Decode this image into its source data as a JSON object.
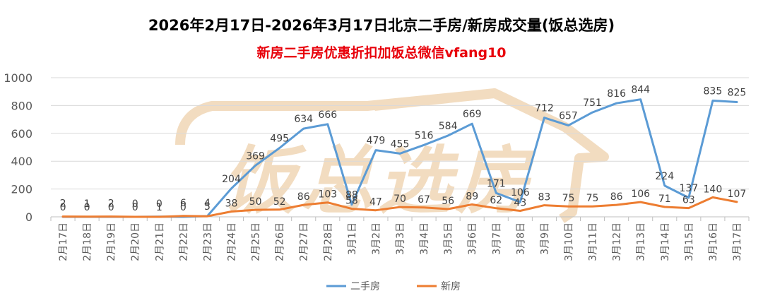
{
  "title": "2026年2月17日-2026年3月17日北京二手房/新房成交量(饭总选房)",
  "subtitle": "新房二手房优惠折扣加饭总微信vfang10",
  "watermark": {
    "text": "饭总选房",
    "color": "#f2dcc0"
  },
  "chart_data": {
    "type": "line",
    "categories": [
      "2月17日",
      "2月18日",
      "2月19日",
      "2月20日",
      "2月21日",
      "2月22日",
      "2月23日",
      "2月24日",
      "2月25日",
      "2月26日",
      "2月27日",
      "2月28日",
      "3月1日",
      "3月2日",
      "3月3日",
      "3月4日",
      "3月5日",
      "3月6日",
      "3月7日",
      "3月8日",
      "3月9日",
      "3月10日",
      "3月11日",
      "3月12日",
      "3月13日",
      "3月14日",
      "3月15日",
      "3月16日",
      "3月17日"
    ],
    "series": [
      {
        "name": "二手房",
        "color": "#5b9bd5",
        "values": [
          0,
          0,
          0,
          0,
          1,
          0,
          5,
          204,
          369,
          495,
          634,
          666,
          88,
          479,
          455,
          516,
          584,
          669,
          171,
          106,
          712,
          657,
          751,
          816,
          844,
          224,
          137,
          835,
          825
        ]
      },
      {
        "name": "新房",
        "color": "#ed7d31",
        "values": [
          2,
          1,
          2,
          0,
          0,
          6,
          4,
          38,
          50,
          52,
          86,
          103,
          58,
          47,
          70,
          67,
          56,
          89,
          62,
          43,
          83,
          75,
          75,
          86,
          106,
          71,
          63,
          140,
          107
        ]
      }
    ],
    "yticks": [
      0,
      200,
      400,
      600,
      800,
      1000
    ],
    "ylim": [
      0,
      1000
    ],
    "grid": true,
    "legend": "bottom"
  }
}
